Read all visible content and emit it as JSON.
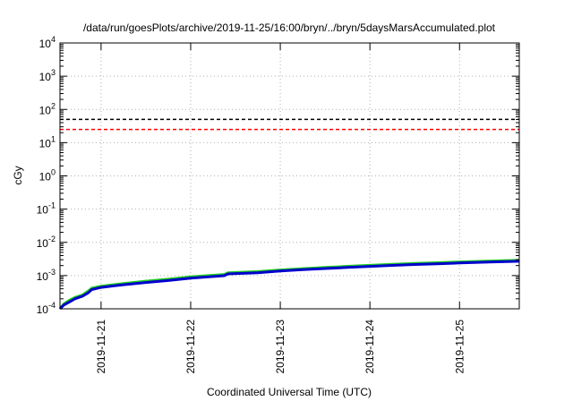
{
  "chart_data": {
    "type": "line",
    "title": "/data/run/goesPlots/archive/2019-11-25/16:00/bryn/../bryn/5daysMarsAccumulated.plot",
    "xlabel": "Coordinated Universal Time (UTC)",
    "ylabel": "cGy",
    "y_scale": "log",
    "ylim": [
      0.0001,
      10000
    ],
    "xlim": [
      "2019-11-20 13:00",
      "2019-11-25 16:00"
    ],
    "grid": true,
    "y_ticks": [
      {
        "value": 0.0001,
        "base": "10",
        "exp": "-4"
      },
      {
        "value": 0.001,
        "base": "10",
        "exp": "-3"
      },
      {
        "value": 0.01,
        "base": "10",
        "exp": "-2"
      },
      {
        "value": 0.1,
        "base": "10",
        "exp": "-1"
      },
      {
        "value": 1,
        "base": "10",
        "exp": "0"
      },
      {
        "value": 10,
        "base": "10",
        "exp": "1"
      },
      {
        "value": 100,
        "base": "10",
        "exp": "2"
      },
      {
        "value": 1000,
        "base": "10",
        "exp": "3"
      },
      {
        "value": 10000,
        "base": "10",
        "exp": "4"
      }
    ],
    "x_ticks": [
      "2019-11-21",
      "2019-11-22",
      "2019-11-23",
      "2019-11-24",
      "2019-11-25"
    ],
    "reference_lines": [
      {
        "value": 50,
        "color": "#000000",
        "style": "dashed"
      },
      {
        "value": 25,
        "color": "#ff0000",
        "style": "dashed"
      }
    ],
    "series": [
      {
        "color": "#22cc22",
        "x": [
          "2019-11-20 13:00",
          "2019-11-20 14:00",
          "2019-11-20 15:30",
          "2019-11-20 17:00",
          "2019-11-20 19:00",
          "2019-11-20 20:30",
          "2019-11-20 21:30",
          "2019-11-21 00:00",
          "2019-11-21 06:00",
          "2019-11-21 12:00",
          "2019-11-21 18:00",
          "2019-11-22 00:00",
          "2019-11-22 09:00",
          "2019-11-22 10:00",
          "2019-11-22 18:00",
          "2019-11-23 00:00",
          "2019-11-23 06:00",
          "2019-11-23 12:00",
          "2019-11-23 18:00",
          "2019-11-24 00:00",
          "2019-11-24 06:00",
          "2019-11-24 12:00",
          "2019-11-24 18:00",
          "2019-11-25 00:00",
          "2019-11-25 08:00",
          "2019-11-25 16:00"
        ],
        "values": [
          0.0001,
          0.00014,
          0.00018,
          0.00022,
          0.00026,
          0.00034,
          0.00042,
          0.00048,
          0.00058,
          0.00068,
          0.00078,
          0.00092,
          0.00108,
          0.00122,
          0.00132,
          0.00148,
          0.00162,
          0.00176,
          0.0019,
          0.00204,
          0.00218,
          0.00232,
          0.00244,
          0.00258,
          0.00274,
          0.0029
        ]
      },
      {
        "color": "#0000cc",
        "x": [
          "2019-11-20 13:00",
          "2019-11-20 14:00",
          "2019-11-20 15:30",
          "2019-11-20 17:00",
          "2019-11-20 19:00",
          "2019-11-20 20:30",
          "2019-11-20 21:30",
          "2019-11-21 00:00",
          "2019-11-21 06:00",
          "2019-11-21 12:00",
          "2019-11-21 18:00",
          "2019-11-22 00:00",
          "2019-11-22 09:00",
          "2019-11-22 10:00",
          "2019-11-22 18:00",
          "2019-11-23 00:00",
          "2019-11-23 06:00",
          "2019-11-23 12:00",
          "2019-11-23 18:00",
          "2019-11-24 00:00",
          "2019-11-24 06:00",
          "2019-11-24 12:00",
          "2019-11-24 18:00",
          "2019-11-25 00:00",
          "2019-11-25 08:00",
          "2019-11-25 16:00"
        ],
        "values": [
          0.0001,
          0.00013,
          0.00016,
          0.0002,
          0.00024,
          0.0003,
          0.00038,
          0.00044,
          0.00053,
          0.00062,
          0.00071,
          0.00084,
          0.00099,
          0.00112,
          0.00122,
          0.00137,
          0.0015,
          0.00163,
          0.00176,
          0.00189,
          0.00202,
          0.00215,
          0.00227,
          0.0024,
          0.00255,
          0.0027
        ]
      }
    ]
  }
}
